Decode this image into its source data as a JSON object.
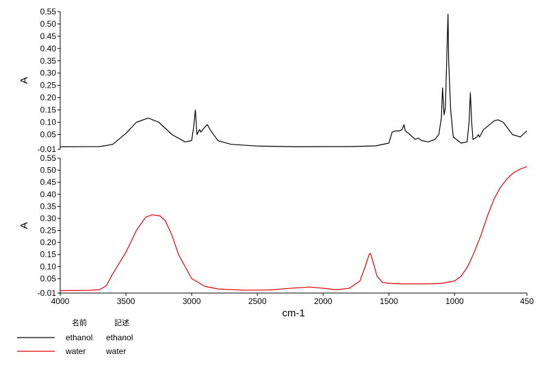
{
  "chart_data": {
    "type": "line",
    "x_unit_label": "cm-1",
    "xlim": [
      4000,
      450
    ],
    "x_ticks": [
      4000,
      3500,
      3000,
      2500,
      2000,
      1500,
      1000,
      450
    ],
    "panels": [
      {
        "ylabel": "A",
        "ylim": [
          -0.01,
          0.55
        ],
        "y_ticks": [
          "-0.01",
          "0.05",
          "0.10",
          "0.15",
          "0.20",
          "0.25",
          "0.30",
          "0.35",
          "0.40",
          "0.45",
          "0.50",
          "0.55"
        ],
        "series": [
          {
            "name": "ethanol",
            "color": "#000000",
            "points": [
              [
                4000,
                0.0
              ],
              [
                3700,
                0.001
              ],
              [
                3600,
                0.01
              ],
              [
                3500,
                0.055
              ],
              [
                3420,
                0.1
              ],
              [
                3330,
                0.117
              ],
              [
                3250,
                0.1
              ],
              [
                3150,
                0.05
              ],
              [
                3050,
                0.02
              ],
              [
                3000,
                0.025
              ],
              [
                2985,
                0.08
              ],
              [
                2972,
                0.15
              ],
              [
                2960,
                0.05
              ],
              [
                2940,
                0.07
              ],
              [
                2930,
                0.06
              ],
              [
                2900,
                0.08
              ],
              [
                2880,
                0.09
              ],
              [
                2860,
                0.07
              ],
              [
                2800,
                0.025
              ],
              [
                2700,
                0.01
              ],
              [
                2500,
                0.003
              ],
              [
                2200,
                0.0
              ],
              [
                2000,
                0.001
              ],
              [
                1800,
                0.001
              ],
              [
                1600,
                0.004
              ],
              [
                1500,
                0.015
              ],
              [
                1475,
                0.06
              ],
              [
                1450,
                0.065
              ],
              [
                1420,
                0.065
              ],
              [
                1400,
                0.07
              ],
              [
                1385,
                0.09
              ],
              [
                1375,
                0.065
              ],
              [
                1350,
                0.055
              ],
              [
                1330,
                0.045
              ],
              [
                1300,
                0.03
              ],
              [
                1275,
                0.035
              ],
              [
                1250,
                0.025
              ],
              [
                1200,
                0.02
              ],
              [
                1150,
                0.03
              ],
              [
                1120,
                0.05
              ],
              [
                1100,
                0.12
              ],
              [
                1092,
                0.24
              ],
              [
                1080,
                0.13
              ],
              [
                1070,
                0.16
              ],
              [
                1060,
                0.35
              ],
              [
                1050,
                0.54
              ],
              [
                1045,
                0.35
              ],
              [
                1030,
                0.15
              ],
              [
                1010,
                0.04
              ],
              [
                950,
                0.015
              ],
              [
                905,
                0.02
              ],
              [
                890,
                0.1
              ],
              [
                880,
                0.22
              ],
              [
                870,
                0.1
              ],
              [
                860,
                0.03
              ],
              [
                830,
                0.04
              ],
              [
                820,
                0.05
              ],
              [
                810,
                0.04
              ],
              [
                780,
                0.07
              ],
              [
                700,
                0.105
              ],
              [
                670,
                0.11
              ],
              [
                630,
                0.1
              ],
              [
                560,
                0.05
              ],
              [
                500,
                0.04
              ],
              [
                460,
                0.06
              ],
              [
                450,
                0.065
              ]
            ]
          }
        ]
      },
      {
        "ylabel": "A",
        "ylim": [
          -0.01,
          0.55
        ],
        "y_ticks": [
          "-0.01",
          "0.05",
          "0.10",
          "0.15",
          "0.20",
          "0.25",
          "0.30",
          "0.35",
          "0.40",
          "0.45",
          "0.50",
          "0.55"
        ],
        "series": [
          {
            "name": "water",
            "color": "#e00000",
            "points": [
              [
                4000,
                0.0
              ],
              [
                3800,
                0.001
              ],
              [
                3700,
                0.004
              ],
              [
                3650,
                0.02
              ],
              [
                3600,
                0.07
              ],
              [
                3500,
                0.16
              ],
              [
                3420,
                0.25
              ],
              [
                3350,
                0.305
              ],
              [
                3300,
                0.315
              ],
              [
                3240,
                0.31
              ],
              [
                3200,
                0.29
              ],
              [
                3150,
                0.23
              ],
              [
                3100,
                0.15
              ],
              [
                3000,
                0.05
              ],
              [
                2900,
                0.018
              ],
              [
                2800,
                0.007
              ],
              [
                2600,
                0.002
              ],
              [
                2400,
                0.003
              ],
              [
                2200,
                0.012
              ],
              [
                2100,
                0.015
              ],
              [
                2000,
                0.01
              ],
              [
                1900,
                0.004
              ],
              [
                1800,
                0.01
              ],
              [
                1720,
                0.04
              ],
              [
                1680,
                0.1
              ],
              [
                1650,
                0.15
              ],
              [
                1640,
                0.155
              ],
              [
                1620,
                0.12
              ],
              [
                1590,
                0.06
              ],
              [
                1550,
                0.035
              ],
              [
                1500,
                0.03
              ],
              [
                1400,
                0.028
              ],
              [
                1200,
                0.028
              ],
              [
                1100,
                0.03
              ],
              [
                1000,
                0.04
              ],
              [
                950,
                0.06
              ],
              [
                900,
                0.1
              ],
              [
                850,
                0.16
              ],
              [
                800,
                0.23
              ],
              [
                750,
                0.31
              ],
              [
                700,
                0.38
              ],
              [
                650,
                0.43
              ],
              [
                600,
                0.465
              ],
              [
                550,
                0.49
              ],
              [
                500,
                0.505
              ],
              [
                450,
                0.515
              ]
            ]
          }
        ]
      }
    ],
    "legend": {
      "placement": "bottom-left",
      "headers": {
        "name": "名前",
        "description": "記述"
      },
      "entries": [
        {
          "name": "ethanol",
          "description": "ethanol",
          "color": "#000000"
        },
        {
          "name": "water",
          "description": "water",
          "color": "#e00000"
        }
      ]
    }
  }
}
